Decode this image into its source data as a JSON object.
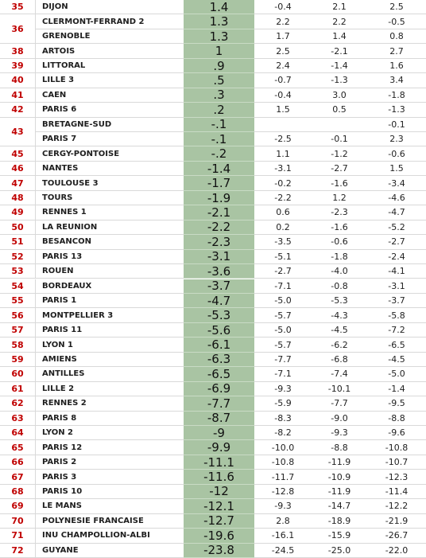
{
  "table": {
    "rows": [
      {
        "rank": "35",
        "name": "DIJON",
        "score": "1.4",
        "a": "-0.4",
        "b": "2.1",
        "c": "2.5"
      },
      {
        "rank": "36",
        "name": "CLERMONT-FERRAND 2",
        "score": "1.3",
        "a": "2.2",
        "b": "2.2",
        "c": "-0.5"
      },
      {
        "name": "GRENOBLE",
        "score": "1.3",
        "a": "1.7",
        "b": "1.4",
        "c": "0.8"
      },
      {
        "rank": "38",
        "name": "ARTOIS",
        "score": "1",
        "a": "2.5",
        "b": "-2.1",
        "c": "2.7"
      },
      {
        "rank": "39",
        "name": "LITTORAL",
        "score": ".9",
        "a": "2.4",
        "b": "-1.4",
        "c": "1.6"
      },
      {
        "rank": "40",
        "name": "LILLE 3",
        "score": ".5",
        "a": "-0.7",
        "b": "-1.3",
        "c": "3.4"
      },
      {
        "rank": "41",
        "name": "CAEN",
        "score": ".3",
        "a": "-0.4",
        "b": "3.0",
        "c": "-1.8"
      },
      {
        "rank": "42",
        "name": "PARIS 6",
        "score": ".2",
        "a": "1.5",
        "b": "0.5",
        "c": "-1.3"
      },
      {
        "rank": "43",
        "name": "BRETAGNE-SUD",
        "score": "-.1",
        "c": "-0.1"
      },
      {
        "name": "PARIS 7",
        "score": "-.1",
        "a": "-2.5",
        "b": "-0.1",
        "c": "2.3"
      },
      {
        "rank": "45",
        "name": "CERGY-PONTOISE",
        "score": "-.2",
        "a": "1.1",
        "b": "-1.2",
        "c": "-0.6"
      },
      {
        "rank": "46",
        "name": "NANTES",
        "score": "-1.4",
        "a": "-3.1",
        "b": "-2.7",
        "c": "1.5"
      },
      {
        "rank": "47",
        "name": "TOULOUSE 3",
        "score": "-1.7",
        "a": "-0.2",
        "b": "-1.6",
        "c": "-3.4"
      },
      {
        "rank": "48",
        "name": "TOURS",
        "score": "-1.9",
        "a": "-2.2",
        "b": "1.2",
        "c": "-4.6"
      },
      {
        "rank": "49",
        "name": "RENNES 1",
        "score": "-2.1",
        "a": "0.6",
        "b": "-2.3",
        "c": "-4.7"
      },
      {
        "rank": "50",
        "name": "LA REUNION",
        "score": "-2.2",
        "a": "0.2",
        "b": "-1.6",
        "c": "-5.2"
      },
      {
        "rank": "51",
        "name": "BESANCON",
        "score": "-2.3",
        "a": "-3.5",
        "b": "-0.6",
        "c": "-2.7"
      },
      {
        "rank": "52",
        "name": "PARIS 13",
        "score": "-3.1",
        "a": "-5.1",
        "b": "-1.8",
        "c": "-2.4"
      },
      {
        "rank": "53",
        "name": "ROUEN",
        "score": "-3.6",
        "a": "-2.7",
        "b": "-4.0",
        "c": "-4.1"
      },
      {
        "rank": "54",
        "name": "BORDEAUX",
        "score": "-3.7",
        "a": "-7.1",
        "b": "-0.8",
        "c": "-3.1"
      },
      {
        "rank": "55",
        "name": "PARIS 1",
        "score": "-4.7",
        "a": "-5.0",
        "b": "-5.3",
        "c": "-3.7"
      },
      {
        "rank": "56",
        "name": "MONTPELLIER 3",
        "score": "-5.3",
        "a": "-5.7",
        "b": "-4.3",
        "c": "-5.8"
      },
      {
        "rank": "57",
        "name": "PARIS 11",
        "score": "-5.6",
        "a": "-5.0",
        "b": "-4.5",
        "c": "-7.2"
      },
      {
        "rank": "58",
        "name": "LYON 1",
        "score": "-6.1",
        "a": "-5.7",
        "b": "-6.2",
        "c": "-6.5"
      },
      {
        "rank": "59",
        "name": "AMIENS",
        "score": "-6.3",
        "a": "-7.7",
        "b": "-6.8",
        "c": "-4.5"
      },
      {
        "rank": "60",
        "name": "ANTILLES",
        "score": "-6.5",
        "a": "-7.1",
        "b": "-7.4",
        "c": "-5.0"
      },
      {
        "rank": "61",
        "name": "LILLE 2",
        "score": "-6.9",
        "a": "-9.3",
        "b": "-10.1",
        "c": "-1.4"
      },
      {
        "rank": "62",
        "name": "RENNES 2",
        "score": "-7.7",
        "a": "-5.9",
        "b": "-7.7",
        "c": "-9.5"
      },
      {
        "rank": "63",
        "name": "PARIS 8",
        "score": "-8.7",
        "a": "-8.3",
        "b": "-9.0",
        "c": "-8.8"
      },
      {
        "rank": "64",
        "name": "LYON 2",
        "score": "-9",
        "a": "-8.2",
        "b": "-9.3",
        "c": "-9.6"
      },
      {
        "rank": "65",
        "name": "PARIS 12",
        "score": "-9.9",
        "a": "-10.0",
        "b": "-8.8",
        "c": "-10.8"
      },
      {
        "rank": "66",
        "name": "PARIS 2",
        "score": "-11.1",
        "a": "-10.8",
        "b": "-11.9",
        "c": "-10.7"
      },
      {
        "rank": "67",
        "name": "PARIS 3",
        "score": "-11.6",
        "a": "-11.7",
        "b": "-10.9",
        "c": "-12.3"
      },
      {
        "rank": "68",
        "name": "PARIS 10",
        "score": "-12",
        "a": "-12.8",
        "b": "-11.9",
        "c": "-11.4"
      },
      {
        "rank": "69",
        "name": "LE MANS",
        "score": "-12.1",
        "a": "-9.3",
        "b": "-14.7",
        "c": "-12.2"
      },
      {
        "rank": "70",
        "name": "POLYNESIE FRANCAISE",
        "score": "-12.7",
        "a": "2.8",
        "b": "-18.9",
        "c": "-21.9"
      },
      {
        "rank": "71",
        "name": "INU CHAMPOLLION-ALBI",
        "score": "-19.6",
        "a": "-16.1",
        "b": "-15.9",
        "c": "-26.7"
      },
      {
        "rank": "72",
        "name": "GUYANE",
        "score": "-23.8",
        "a": "-24.5",
        "b": "-25.0",
        "c": "-22.0"
      }
    ]
  }
}
